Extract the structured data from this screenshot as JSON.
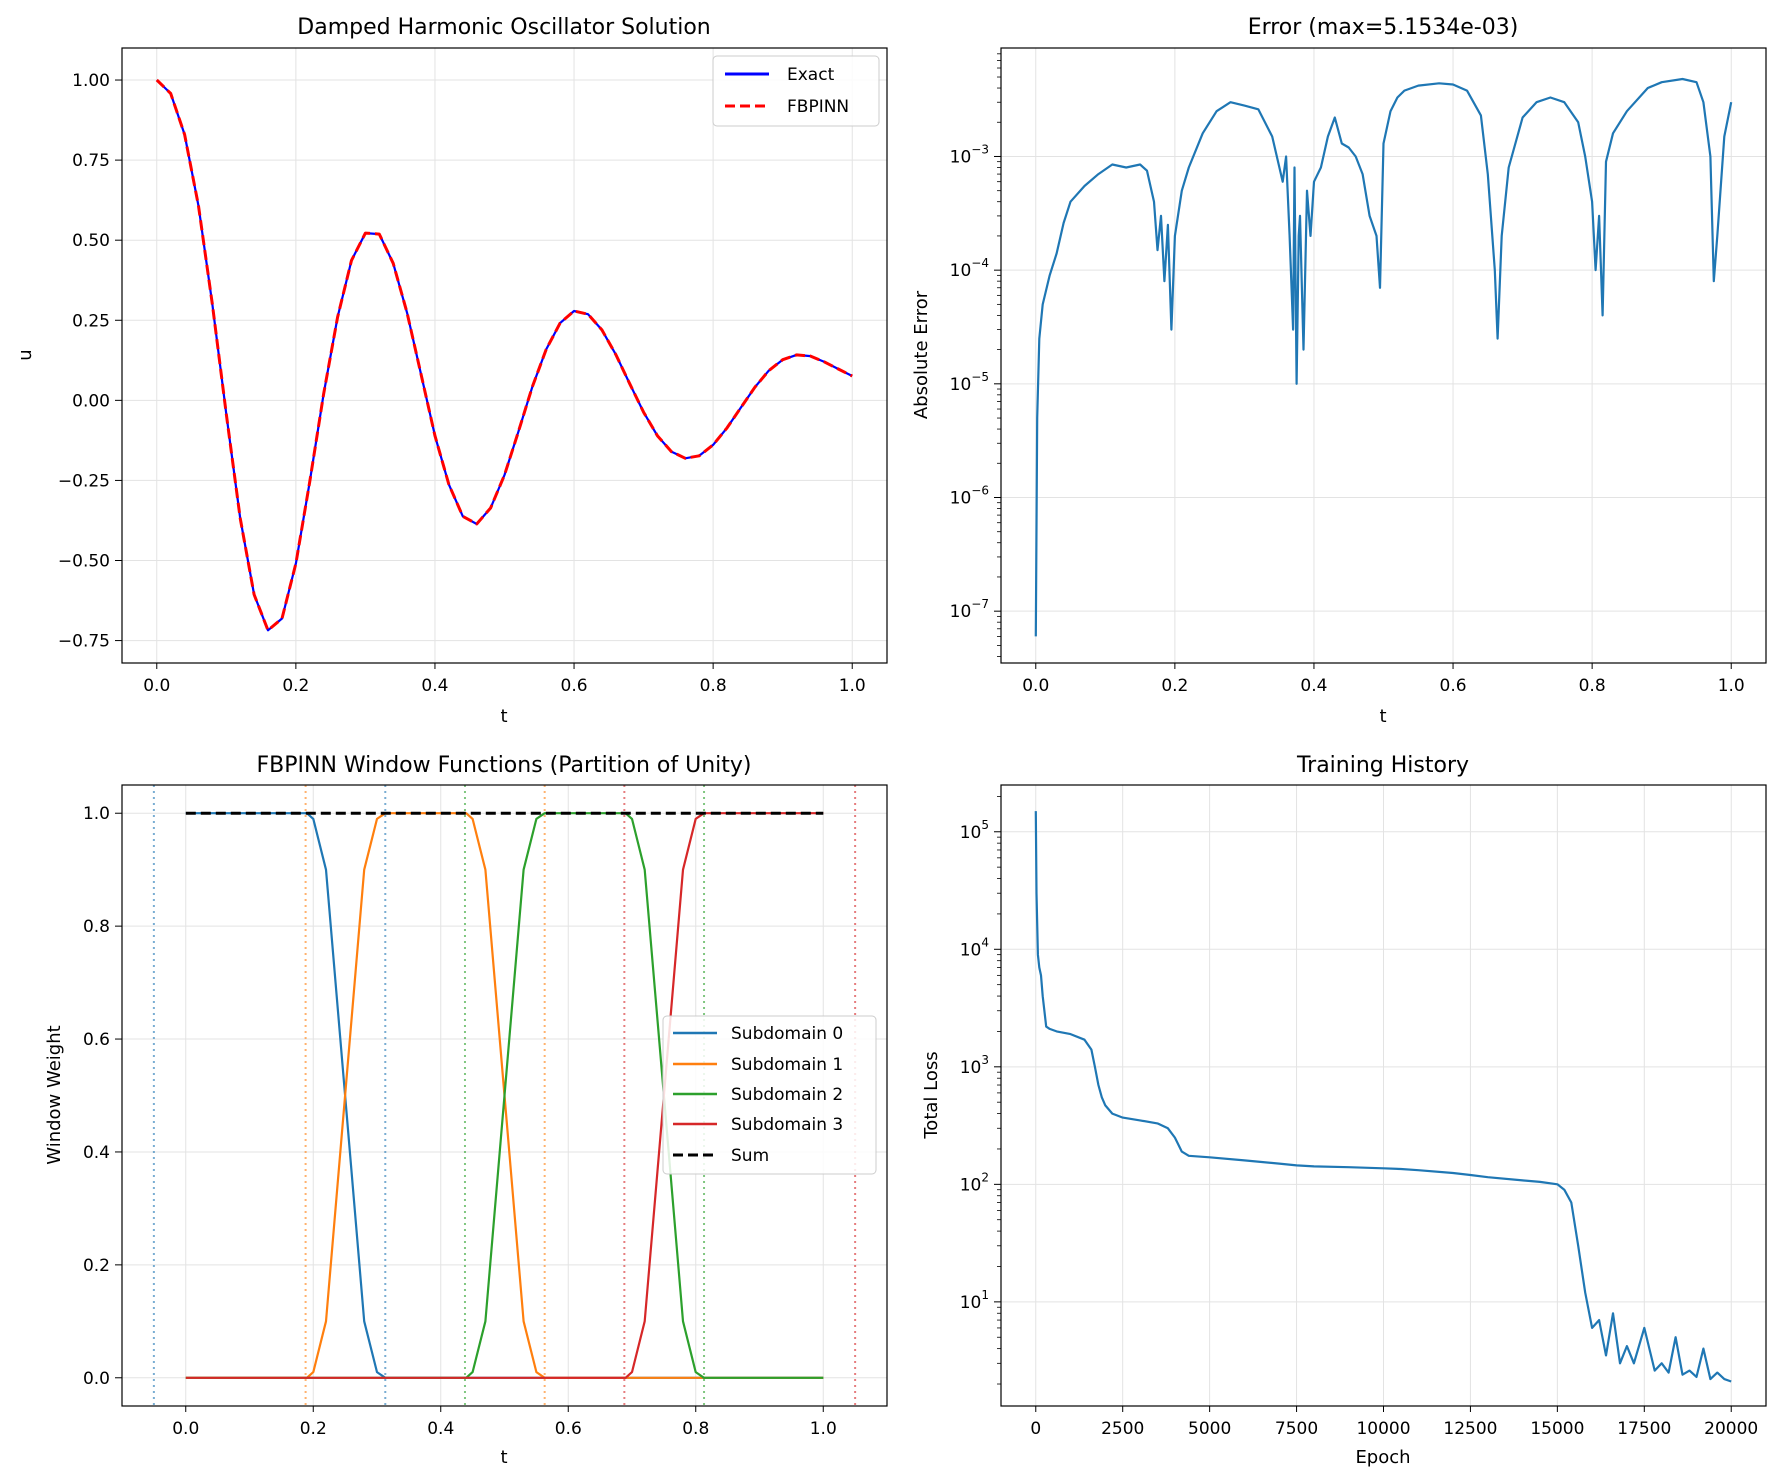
{
  "chart_data": [
    {
      "type": "line",
      "title": "Damped Harmonic Oscillator Solution",
      "xlabel": "t",
      "ylabel": "u",
      "xlim": [
        -0.05,
        1.05
      ],
      "ylim": [
        -0.82,
        1.1
      ],
      "xticks": [
        "0.0",
        "0.2",
        "0.4",
        "0.6",
        "0.8",
        "1.0"
      ],
      "yticks": [
        "1.00",
        "0.75",
        "0.50",
        "0.25",
        "0.00",
        "−0.25",
        "−0.50",
        "−0.75"
      ],
      "grid": true,
      "legend_position": "top-right",
      "series": [
        {
          "name": "Exact",
          "color": "#0000ff",
          "style": "solid",
          "x": [
            0.0,
            0.02,
            0.04,
            0.06,
            0.08,
            0.1,
            0.12,
            0.14,
            0.16,
            0.18,
            0.2,
            0.22,
            0.24,
            0.26,
            0.28,
            0.3,
            0.32,
            0.34,
            0.36,
            0.38,
            0.4,
            0.42,
            0.44,
            0.46,
            0.48,
            0.5,
            0.52,
            0.54,
            0.56,
            0.58,
            0.6,
            0.62,
            0.64,
            0.66,
            0.68,
            0.7,
            0.72,
            0.74,
            0.76,
            0.78,
            0.8,
            0.82,
            0.84,
            0.86,
            0.88,
            0.9,
            0.92,
            0.94,
            0.96,
            0.98,
            1.0
          ],
          "y": [
            1.0,
            0.958,
            0.83,
            0.607,
            0.299,
            -0.043,
            -0.368,
            -0.606,
            -0.718,
            -0.681,
            -0.509,
            -0.253,
            0.021,
            0.26,
            0.437,
            0.522,
            0.519,
            0.428,
            0.273,
            0.082,
            -0.111,
            -0.263,
            -0.362,
            -0.386,
            -0.336,
            -0.233,
            -0.098,
            0.042,
            0.159,
            0.241,
            0.279,
            0.269,
            0.22,
            0.143,
            0.052,
            -0.037,
            -0.111,
            -0.16,
            -0.181,
            -0.173,
            -0.139,
            -0.086,
            -0.022,
            0.041,
            0.093,
            0.127,
            0.142,
            0.138,
            0.12,
            0.098,
            0.076
          ]
        },
        {
          "name": "FBPINN",
          "color": "#ff0000",
          "style": "dashed",
          "x": [
            0.0,
            0.02,
            0.04,
            0.06,
            0.08,
            0.1,
            0.12,
            0.14,
            0.16,
            0.18,
            0.2,
            0.22,
            0.24,
            0.26,
            0.28,
            0.3,
            0.32,
            0.34,
            0.36,
            0.38,
            0.4,
            0.42,
            0.44,
            0.46,
            0.48,
            0.5,
            0.52,
            0.54,
            0.56,
            0.58,
            0.6,
            0.62,
            0.64,
            0.66,
            0.68,
            0.7,
            0.72,
            0.74,
            0.76,
            0.78,
            0.8,
            0.82,
            0.84,
            0.86,
            0.88,
            0.9,
            0.92,
            0.94,
            0.96,
            0.98,
            1.0
          ],
          "y": [
            1.0,
            0.958,
            0.83,
            0.607,
            0.299,
            -0.043,
            -0.368,
            -0.606,
            -0.718,
            -0.681,
            -0.509,
            -0.253,
            0.021,
            0.26,
            0.437,
            0.522,
            0.519,
            0.428,
            0.273,
            0.082,
            -0.111,
            -0.263,
            -0.362,
            -0.386,
            -0.336,
            -0.233,
            -0.098,
            0.042,
            0.159,
            0.241,
            0.279,
            0.269,
            0.22,
            0.143,
            0.052,
            -0.037,
            -0.111,
            -0.16,
            -0.181,
            -0.173,
            -0.139,
            -0.086,
            -0.022,
            0.041,
            0.093,
            0.127,
            0.142,
            0.138,
            0.12,
            0.098,
            0.076
          ]
        }
      ]
    },
    {
      "type": "line",
      "title": "Error (max=5.1534e-03)",
      "xlabel": "t",
      "ylabel": "Absolute Error",
      "yscale": "log",
      "xlim": [
        -0.05,
        1.05
      ],
      "ylim": [
        3.5e-08,
        0.009
      ],
      "xticks": [
        "0.0",
        "0.2",
        "0.4",
        "0.6",
        "0.8",
        "1.0"
      ],
      "ytick_exponents": [
        -3,
        -4,
        -5,
        -6,
        -7
      ],
      "grid": true,
      "series": [
        {
          "name": "",
          "color": "#1f77b4",
          "x": [
            0.0,
            0.002,
            0.005,
            0.01,
            0.02,
            0.03,
            0.04,
            0.05,
            0.07,
            0.09,
            0.11,
            0.13,
            0.15,
            0.16,
            0.17,
            0.175,
            0.18,
            0.185,
            0.19,
            0.195,
            0.2,
            0.21,
            0.22,
            0.24,
            0.26,
            0.28,
            0.3,
            0.32,
            0.34,
            0.355,
            0.36,
            0.365,
            0.37,
            0.372,
            0.375,
            0.378,
            0.38,
            0.385,
            0.39,
            0.395,
            0.4,
            0.41,
            0.42,
            0.43,
            0.44,
            0.45,
            0.46,
            0.47,
            0.48,
            0.49,
            0.495,
            0.5,
            0.51,
            0.52,
            0.53,
            0.55,
            0.58,
            0.6,
            0.62,
            0.64,
            0.65,
            0.66,
            0.664,
            0.67,
            0.68,
            0.7,
            0.72,
            0.74,
            0.76,
            0.78,
            0.79,
            0.8,
            0.805,
            0.81,
            0.815,
            0.82,
            0.83,
            0.85,
            0.88,
            0.9,
            0.93,
            0.95,
            0.96,
            0.97,
            0.975,
            0.98,
            0.99,
            1.0
          ],
          "y": [
            6e-08,
            5e-06,
            2.5e-05,
            5e-05,
            9e-05,
            0.00014,
            0.00026,
            0.0004,
            0.00055,
            0.0007,
            0.00085,
            0.0008,
            0.00085,
            0.00075,
            0.0004,
            0.00015,
            0.0003,
            8e-05,
            0.00025,
            3e-05,
            0.0002,
            0.0005,
            0.0008,
            0.0016,
            0.0025,
            0.003,
            0.0028,
            0.0026,
            0.0015,
            0.0006,
            0.001,
            0.0002,
            3e-05,
            0.0008,
            1e-05,
            0.0002,
            0.0003,
            2e-05,
            0.0005,
            0.0002,
            0.0006,
            0.0008,
            0.0015,
            0.0022,
            0.0013,
            0.0012,
            0.001,
            0.0007,
            0.0003,
            0.0002,
            7e-05,
            0.0013,
            0.0025,
            0.0033,
            0.0038,
            0.0042,
            0.0044,
            0.0043,
            0.0038,
            0.0023,
            0.0007,
            0.0001,
            2.5e-05,
            0.0002,
            0.0008,
            0.0022,
            0.003,
            0.0033,
            0.003,
            0.002,
            0.001,
            0.0004,
            0.0001,
            0.0003,
            4e-05,
            0.0009,
            0.0016,
            0.0025,
            0.004,
            0.0045,
            0.0048,
            0.0045,
            0.003,
            0.001,
            8e-05,
            0.0002,
            0.0015,
            0.003
          ]
        }
      ]
    },
    {
      "type": "line",
      "title": "FBPINN Window Functions (Partition of Unity)",
      "xlabel": "t",
      "ylabel": "Window Weight",
      "xlim": [
        -0.1,
        1.1
      ],
      "ylim": [
        -0.05,
        1.05
      ],
      "xticks": [
        "0.0",
        "0.2",
        "0.4",
        "0.6",
        "0.8",
        "1.0"
      ],
      "yticks": [
        "1.0",
        "0.8",
        "0.6",
        "0.4",
        "0.2",
        "0.0"
      ],
      "grid": true,
      "legend_position": "center-right",
      "series": [
        {
          "name": "Subdomain 0",
          "color": "#1f77b4",
          "x": [
            0.0,
            0.19,
            0.2,
            0.22,
            0.25,
            0.28,
            0.3,
            0.313,
            1.0
          ],
          "y": [
            1.0,
            1.0,
            0.99,
            0.9,
            0.5,
            0.1,
            0.01,
            0.0,
            0.0
          ]
        },
        {
          "name": "Subdomain 1",
          "color": "#ff7f0e",
          "x": [
            0.0,
            0.19,
            0.2,
            0.22,
            0.25,
            0.28,
            0.3,
            0.313,
            0.44,
            0.45,
            0.47,
            0.5,
            0.53,
            0.55,
            0.563,
            1.0
          ],
          "y": [
            0.0,
            0.0,
            0.01,
            0.1,
            0.5,
            0.9,
            0.99,
            1.0,
            1.0,
            0.99,
            0.9,
            0.5,
            0.1,
            0.01,
            0.0,
            0.0
          ]
        },
        {
          "name": "Subdomain 2",
          "color": "#2ca02c",
          "x": [
            0.0,
            0.44,
            0.45,
            0.47,
            0.5,
            0.53,
            0.55,
            0.563,
            0.69,
            0.7,
            0.72,
            0.75,
            0.78,
            0.8,
            0.813,
            1.0
          ],
          "y": [
            0.0,
            0.0,
            0.01,
            0.1,
            0.5,
            0.9,
            0.99,
            1.0,
            1.0,
            0.99,
            0.9,
            0.5,
            0.1,
            0.01,
            0.0,
            0.0
          ]
        },
        {
          "name": "Subdomain 3",
          "color": "#d62728",
          "x": [
            0.0,
            0.69,
            0.7,
            0.72,
            0.75,
            0.78,
            0.8,
            0.813,
            1.0
          ],
          "y": [
            0.0,
            0.0,
            0.01,
            0.1,
            0.5,
            0.9,
            0.99,
            1.0,
            1.0
          ]
        },
        {
          "name": "Sum",
          "color": "#000000",
          "style": "dashed",
          "x": [
            0.0,
            1.0
          ],
          "y": [
            1.0,
            1.0
          ]
        }
      ],
      "vlines": [
        {
          "x": -0.05,
          "color": "#1f77b4"
        },
        {
          "x": 0.313,
          "color": "#1f77b4"
        },
        {
          "x": 0.188,
          "color": "#ff7f0e"
        },
        {
          "x": 0.563,
          "color": "#ff7f0e"
        },
        {
          "x": 0.438,
          "color": "#2ca02c"
        },
        {
          "x": 0.813,
          "color": "#2ca02c"
        },
        {
          "x": 0.688,
          "color": "#d62728"
        },
        {
          "x": 1.05,
          "color": "#d62728"
        }
      ]
    },
    {
      "type": "line",
      "title": "Training History",
      "xlabel": "Epoch",
      "ylabel": "Total Loss",
      "yscale": "log",
      "xlim": [
        -1000,
        21000
      ],
      "ylim": [
        1.3,
        250000.0
      ],
      "xticks": [
        "0",
        "2500",
        "5000",
        "7500",
        "10000",
        "12500",
        "15000",
        "17500",
        "20000"
      ],
      "ytick_exponents": [
        5,
        4,
        3,
        2,
        1
      ],
      "grid": true,
      "series": [
        {
          "name": "",
          "color": "#1f77b4",
          "x": [
            0,
            20,
            60,
            100,
            150,
            200,
            300,
            400,
            600,
            1000,
            1400,
            1600,
            1700,
            1800,
            1900,
            2000,
            2200,
            2500,
            3000,
            3500,
            3800,
            4000,
            4200,
            4400,
            5000,
            6000,
            7000,
            7500,
            8000,
            9000,
            10000,
            10500,
            11000,
            12000,
            12500,
            13000,
            14000,
            14500,
            15000,
            15200,
            15400,
            15600,
            15800,
            16000,
            16200,
            16400,
            16600,
            16800,
            17000,
            17200,
            17500,
            17800,
            18000,
            18200,
            18400,
            18600,
            18800,
            19000,
            19200,
            19400,
            19600,
            19800,
            20000
          ],
          "y": [
            150000,
            30000,
            9000,
            7000,
            6000,
            4000,
            2200,
            2100,
            2000,
            1900,
            1700,
            1400,
            1000,
            700,
            550,
            470,
            400,
            370,
            350,
            330,
            300,
            250,
            190,
            175,
            170,
            160,
            150,
            145,
            142,
            140,
            137,
            135,
            132,
            125,
            120,
            115,
            108,
            105,
            100,
            90,
            70,
            30,
            12,
            6,
            7,
            3.5,
            8,
            3,
            4.2,
            3,
            6,
            2.6,
            3,
            2.5,
            5,
            2.4,
            2.6,
            2.3,
            4,
            2.2,
            2.5,
            2.2,
            2.1
          ]
        }
      ]
    }
  ]
}
